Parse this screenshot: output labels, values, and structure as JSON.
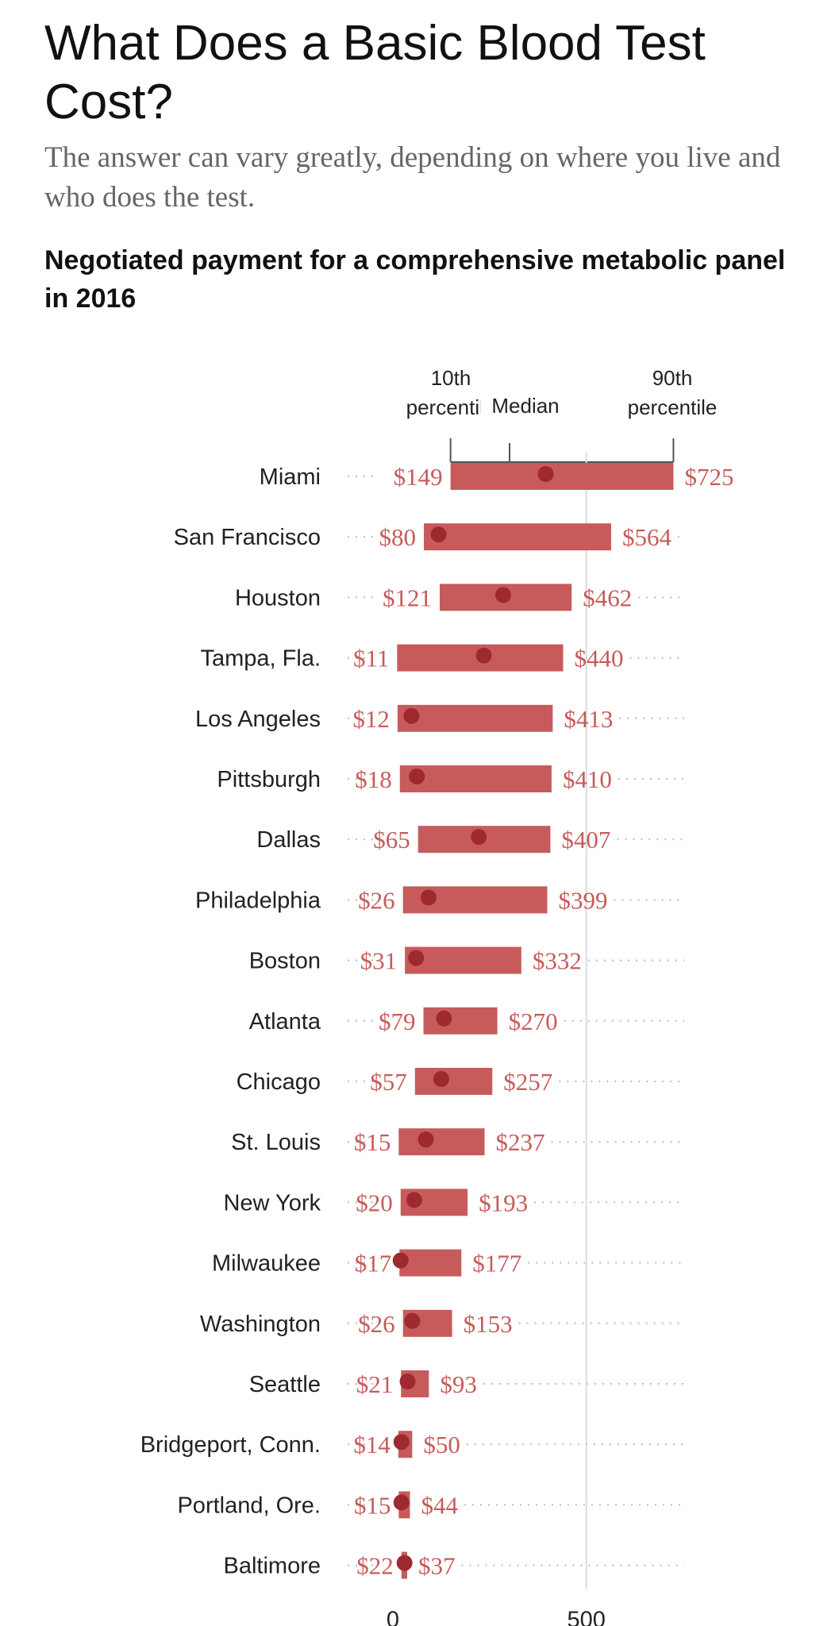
{
  "header": {
    "title": "What Does a Basic Blood Test Cost?",
    "subtitle": "The answer can vary greatly, depending on where you live and who does the test."
  },
  "legend": {
    "p10_line1": "10th",
    "p10_line2": "percentile",
    "median": "Median",
    "p90_line1": "90th",
    "p90_line2": "percentile"
  },
  "colors": {
    "bar": "#c75b5b",
    "median_dot": "#9e2a2f",
    "value_text": "#c75b5b",
    "dotted_leader": "#bbbbbb",
    "gridline": "#dddddd"
  },
  "chart_data": {
    "type": "range-bar",
    "title": "Negotiated payment for a comprehensive metabolic panel in 2016",
    "x_ticks": [
      0,
      500
    ],
    "xlim": [
      0,
      800
    ],
    "rows": [
      {
        "city": "Miami",
        "p10": 149,
        "p90": 725,
        "median": 395,
        "p10_label": "$149",
        "p90_label": "$725"
      },
      {
        "city": "San Francisco",
        "p10": 80,
        "p90": 564,
        "median": 118,
        "p10_label": "$80",
        "p90_label": "$564"
      },
      {
        "city": "Houston",
        "p10": 121,
        "p90": 462,
        "median": 285,
        "p10_label": "$121",
        "p90_label": "$462"
      },
      {
        "city": "Tampa, Fla.",
        "p10": 11,
        "p90": 440,
        "median": 235,
        "p10_label": "$11",
        "p90_label": "$440"
      },
      {
        "city": "Los Angeles",
        "p10": 12,
        "p90": 413,
        "median": 48,
        "p10_label": "$12",
        "p90_label": "$413"
      },
      {
        "city": "Pittsburgh",
        "p10": 18,
        "p90": 410,
        "median": 62,
        "p10_label": "$18",
        "p90_label": "$410"
      },
      {
        "city": "Dallas",
        "p10": 65,
        "p90": 407,
        "median": 222,
        "p10_label": "$65",
        "p90_label": "$407"
      },
      {
        "city": "Philadelphia",
        "p10": 26,
        "p90": 399,
        "median": 92,
        "p10_label": "$26",
        "p90_label": "$399"
      },
      {
        "city": "Boston",
        "p10": 31,
        "p90": 332,
        "median": 60,
        "p10_label": "$31",
        "p90_label": "$332"
      },
      {
        "city": "Atlanta",
        "p10": 79,
        "p90": 270,
        "median": 132,
        "p10_label": "$79",
        "p90_label": "$270"
      },
      {
        "city": "Chicago",
        "p10": 57,
        "p90": 257,
        "median": 125,
        "p10_label": "$57",
        "p90_label": "$257"
      },
      {
        "city": "St. Louis",
        "p10": 15,
        "p90": 237,
        "median": 85,
        "p10_label": "$15",
        "p90_label": "$237"
      },
      {
        "city": "New York",
        "p10": 20,
        "p90": 193,
        "median": 55,
        "p10_label": "$20",
        "p90_label": "$193"
      },
      {
        "city": "Milwaukee",
        "p10": 17,
        "p90": 177,
        "median": 20,
        "p10_label": "$17",
        "p90_label": "$177"
      },
      {
        "city": "Washington",
        "p10": 26,
        "p90": 153,
        "median": 50,
        "p10_label": "$26",
        "p90_label": "$153"
      },
      {
        "city": "Seattle",
        "p10": 21,
        "p90": 93,
        "median": 38,
        "p10_label": "$21",
        "p90_label": "$93"
      },
      {
        "city": "Bridgeport, Conn.",
        "p10": 14,
        "p90": 50,
        "median": 22,
        "p10_label": "$14",
        "p90_label": "$50"
      },
      {
        "city": "Portland, Ore.",
        "p10": 15,
        "p90": 44,
        "median": 22,
        "p10_label": "$15",
        "p90_label": "$44"
      },
      {
        "city": "Baltimore",
        "p10": 22,
        "p90": 37,
        "median": 30,
        "p10_label": "$22",
        "p90_label": "$37"
      }
    ]
  }
}
